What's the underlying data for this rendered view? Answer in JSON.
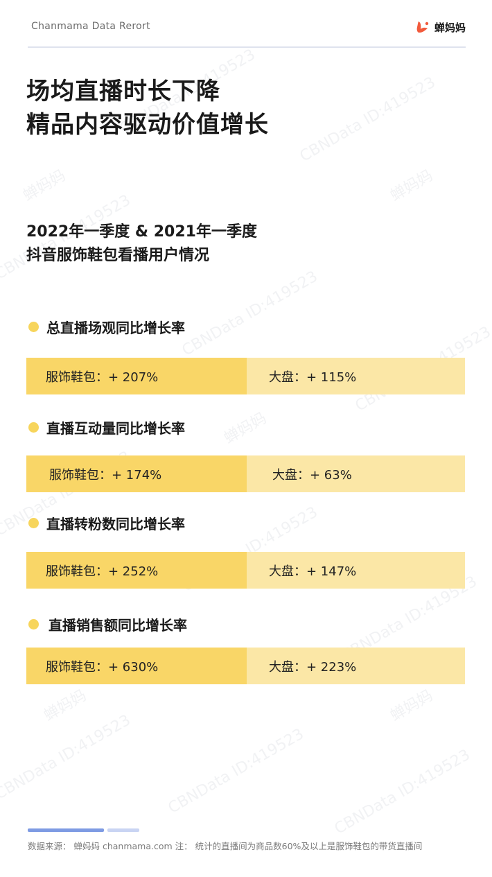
{
  "header": {
    "brand": "Chanmama Data Rerort",
    "logo_text": "蝉妈妈",
    "logo_color": "#f25a3c"
  },
  "title": {
    "line1": "场均直播时长下降",
    "line2": "精品内容驱动价值增长"
  },
  "subtitle": {
    "line1": "2022年一季度 & 2021年一季度",
    "line2": "抖音服饰鞋包看播用户情况"
  },
  "sections": [
    {
      "heading": "总直播场观同比增长率",
      "left": "服饰鞋包：+ 207%",
      "right": "大盘：+ 115%"
    },
    {
      "heading": "直播互动量同比增长率",
      "left": "服饰鞋包：+ 174%",
      "right": "大盘：+ 63%"
    },
    {
      "heading": "直播转粉数同比增长率",
      "left": "服饰鞋包：+ 252%",
      "right": "大盘：+ 147%"
    },
    {
      "heading": "直播销售额同比增长率",
      "left": "服饰鞋包：+ 630%",
      "right": "大盘：+ 223%"
    }
  ],
  "footer": {
    "note": "数据来源：  蝉妈妈 chanmama.com   注：  统计的直播间为商品数60%及以上是服饰鞋包的带货直播间"
  },
  "watermark": {
    "text_id": "CBNData ID:419523",
    "text_brand": "蝉妈妈"
  },
  "colors": {
    "bullet": "#f7d55c",
    "stat_left": "#f9d667",
    "stat_right": "#fbe7a6",
    "footer_bar_primary": "#7e9be3",
    "footer_bar_secondary": "#c9d4f3"
  }
}
